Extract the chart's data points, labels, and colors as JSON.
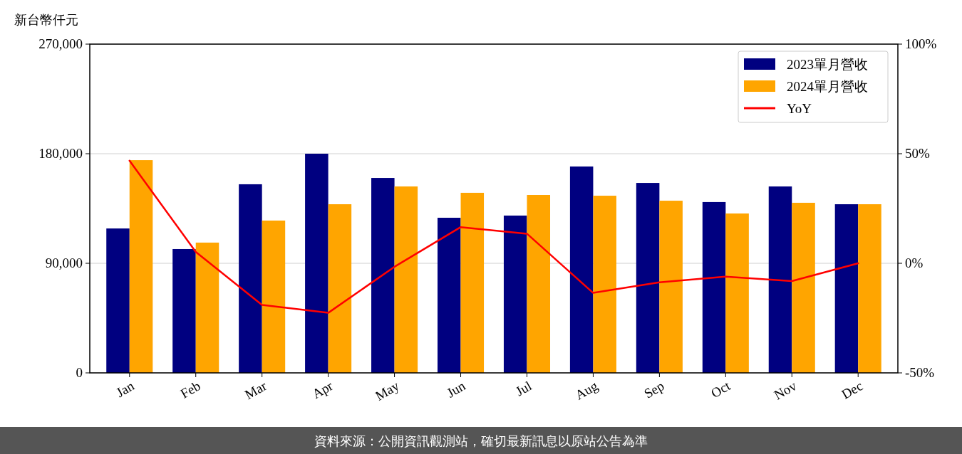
{
  "chart_data": {
    "type": "bar",
    "ylabel": "新台幣仟元",
    "categories": [
      "Jan",
      "Feb",
      "Mar",
      "Apr",
      "May",
      "Jun",
      "Jul",
      "Aug",
      "Sep",
      "Oct",
      "Nov",
      "Dec"
    ],
    "series": [
      {
        "name": "2023單月營收",
        "color": "#000080",
        "values": [
          118600,
          101700,
          154900,
          180000,
          160100,
          127400,
          129200,
          169500,
          156000,
          140300,
          153100,
          138500
        ]
      },
      {
        "name": "2024單月營收",
        "color": "#ffa500",
        "values": [
          174700,
          107000,
          125100,
          138500,
          153100,
          147900,
          146100,
          145500,
          141400,
          130900,
          139700,
          138500
        ]
      },
      {
        "name": "YoY",
        "type": "line",
        "axis": "y2",
        "color": "#ff0000",
        "values": [
          46.8,
          5.2,
          -19.0,
          -22.6,
          -1.6,
          16.5,
          13.5,
          -13.5,
          -8.7,
          -6.1,
          -8.1,
          0
        ]
      }
    ],
    "ylim": [
      0,
      270000
    ],
    "yticks": [
      {
        "value": 0,
        "label": "0"
      },
      {
        "value": 90000,
        "label": "90,000"
      },
      {
        "value": 180000,
        "label": "180,000"
      },
      {
        "value": 270000,
        "label": "270,000"
      }
    ],
    "y2lim": [
      -50,
      100
    ],
    "y2ticks": [
      {
        "value": -50,
        "label": "-50%"
      },
      {
        "value": 0,
        "label": "0%"
      },
      {
        "value": 50,
        "label": "50%"
      },
      {
        "value": 100,
        "label": "100%"
      }
    ],
    "grid": "y",
    "legend": "top right",
    "marker": "none",
    "line_style": "solid",
    "annotations": [
      "資料來源：公開資訊觀測站，確切最新訊息以原站公告為準"
    ]
  }
}
